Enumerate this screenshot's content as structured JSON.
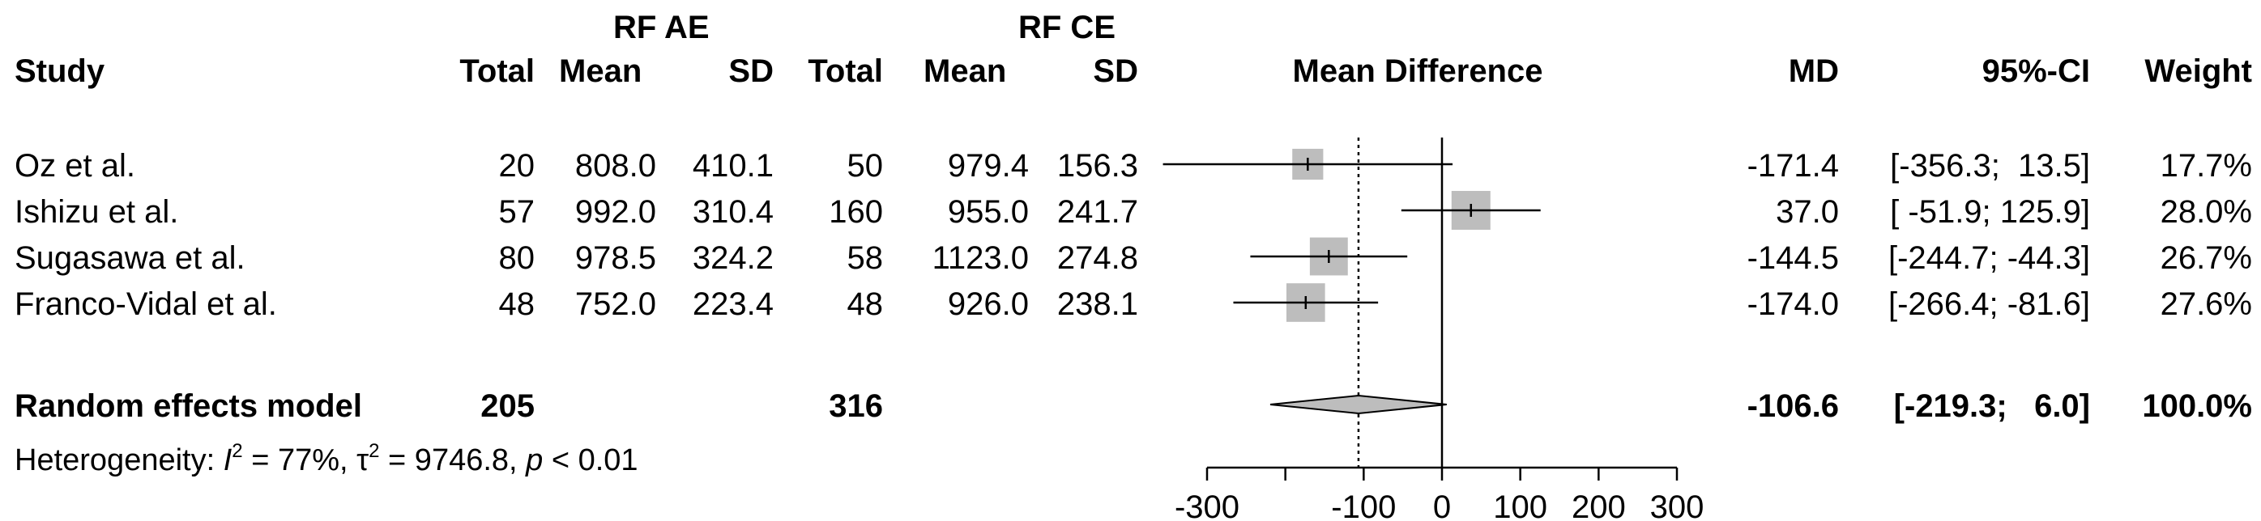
{
  "chart_data": {
    "type": "forest",
    "header": {
      "group1_label": "RF AE",
      "group2_label": "RF CE",
      "study": "Study",
      "total": "Total",
      "mean": "Mean",
      "sd": "SD",
      "plot_title": "Mean Difference",
      "md": "MD",
      "ci": "95%-CI",
      "weight": "Weight"
    },
    "studies": [
      {
        "name": "Oz et al.",
        "total1": "20",
        "mean1": "808.0",
        "sd1": "410.1",
        "total2": "50",
        "mean2": "979.4",
        "sd2": "156.3",
        "md_text": "-171.4",
        "ci_text": "[-356.3;  13.5]",
        "weight_text": "17.7%",
        "md": -171.4,
        "lower": -356.3,
        "upper": 13.5,
        "weight": 17.7
      },
      {
        "name": "Ishizu et al.",
        "total1": "57",
        "mean1": "992.0",
        "sd1": "310.4",
        "total2": "160",
        "mean2": "955.0",
        "sd2": "241.7",
        "md_text": "37.0",
        "ci_text": "[ -51.9; 125.9]",
        "weight_text": "28.0%",
        "md": 37.0,
        "lower": -51.9,
        "upper": 125.9,
        "weight": 28.0
      },
      {
        "name": "Sugasawa et al.",
        "total1": "80",
        "mean1": "978.5",
        "sd1": "324.2",
        "total2": "58",
        "mean2": "1123.0",
        "sd2": "274.8",
        "md_text": "-144.5",
        "ci_text": "[-244.7; -44.3]",
        "weight_text": "26.7%",
        "md": -144.5,
        "lower": -244.7,
        "upper": -44.3,
        "weight": 26.7
      },
      {
        "name": "Franco-Vidal et al.",
        "total1": "48",
        "mean1": "752.0",
        "sd1": "223.4",
        "total2": "48",
        "mean2": "926.0",
        "sd2": "238.1",
        "md_text": "-174.0",
        "ci_text": "[-266.4; -81.6]",
        "weight_text": "27.6%",
        "md": -174.0,
        "lower": -266.4,
        "upper": -81.6,
        "weight": 27.6
      }
    ],
    "pooled": {
      "label": "Random effects model",
      "total1": "205",
      "total2": "316",
      "md_text": "-106.6",
      "ci_text": "[-219.3;   6.0]",
      "weight_text": "100.0%",
      "md": -106.6,
      "lower": -219.3,
      "upper": 6.0
    },
    "heterogeneity": {
      "prefix": "Heterogeneity: ",
      "i_symbol": "I",
      "i2_value": " = 77%, ",
      "tau_symbol": "τ",
      "tau2_value": " = 9746.8, ",
      "p_symbol": "p",
      "p_value": " < 0.01",
      "squared": "2"
    },
    "xaxis": {
      "min": -300,
      "max": 300,
      "null_line": 0,
      "ticks": [
        -300,
        -200,
        -100,
        0,
        100,
        200,
        300
      ],
      "tick_labels": [
        "-300",
        "",
        "-100",
        "0",
        "100",
        "200",
        "300"
      ]
    }
  }
}
